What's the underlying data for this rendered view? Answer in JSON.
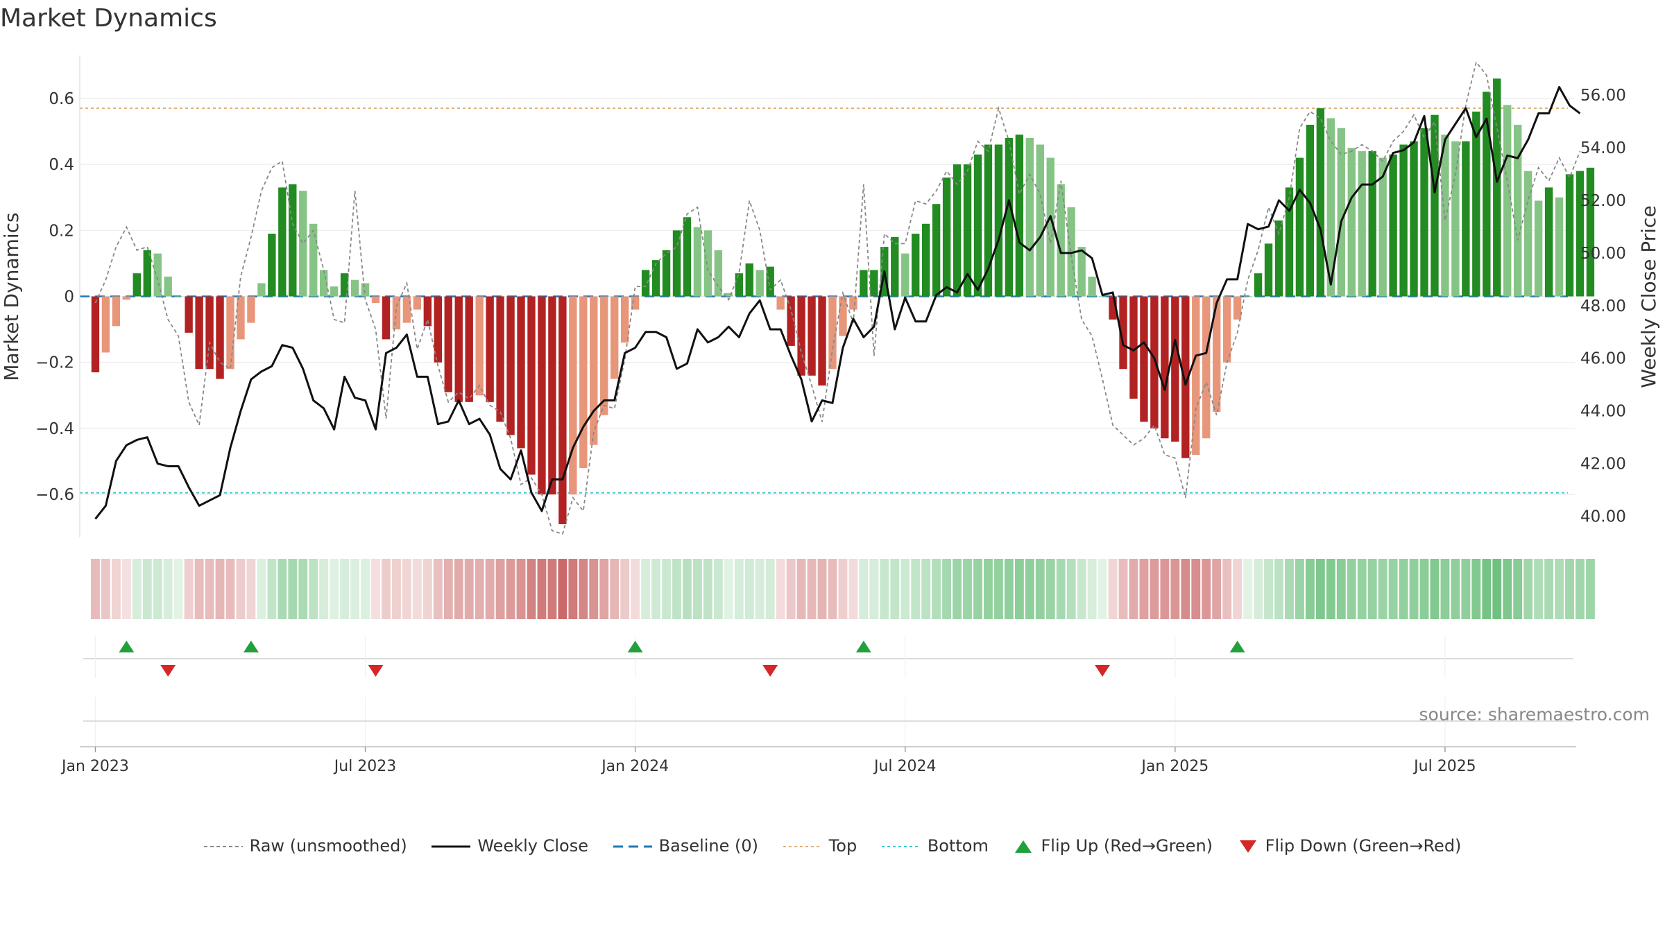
{
  "chart_data": {
    "type": "bar",
    "title": "Market Dynamics",
    "source": "source: sharemaestro.com",
    "y_left": {
      "label": "Market Dynamics",
      "range": [
        -0.73,
        0.73
      ],
      "ticks": [
        0.6,
        0.4,
        0.2,
        0,
        -0.2,
        -0.4,
        -0.6
      ],
      "tick_labels": [
        "0.6",
        "0.4",
        "0.2",
        "0",
        "−0.2",
        "−0.4",
        "−0.6"
      ]
    },
    "y_right": {
      "label": "Weekly Close Price",
      "range": [
        39.2,
        57.5
      ],
      "ticks": [
        40,
        42,
        44,
        46,
        48,
        50,
        52,
        54,
        56
      ],
      "tick_labels": [
        "40.00",
        "42.00",
        "44.00",
        "46.00",
        "48.00",
        "50.00",
        "52.00",
        "54.00",
        "56.00"
      ]
    },
    "x": {
      "range_weeks": [
        -1.5,
        142.5
      ],
      "ticks": [
        0,
        26,
        52,
        78,
        104,
        130
      ],
      "tick_labels": [
        "Jan 2023",
        "Jul 2023",
        "Jan 2024",
        "Jul 2024",
        "Jan 2025",
        "Jul 2025"
      ]
    },
    "top_level": 0.57,
    "bottom_level": -0.595,
    "legend": [
      "Raw (unsmoothed)",
      "Weekly Close",
      "Baseline (0)",
      "Top",
      "Bottom",
      "Flip Up (Red→Green)",
      "Flip Down (Green→Red)"
    ],
    "colors": {
      "strong_green": "#228B22",
      "light_green": "#86C486",
      "strong_red": "#B22222",
      "light_red": "#E8967A",
      "raw": "#888888",
      "close": "#111111",
      "baseline": "#1F77B4",
      "top": "#E0B070",
      "bottom": "#40C8D0",
      "flip_up": "#22A03A",
      "flip_down": "#D62728"
    },
    "series": [
      {
        "name": "Market Dynamics",
        "values": [
          -0.23,
          -0.17,
          -0.09,
          -0.01,
          0.07,
          0.14,
          0.13,
          0.06,
          0,
          -0.11,
          -0.22,
          -0.22,
          -0.25,
          -0.22,
          -0.13,
          -0.08,
          0.04,
          0.19,
          0.33,
          0.34,
          0.32,
          0.22,
          0.08,
          0.03,
          0.07,
          0.05,
          0.04,
          -0.02,
          -0.13,
          -0.1,
          -0.08,
          -0.04,
          -0.09,
          -0.2,
          -0.29,
          -0.32,
          -0.32,
          -0.3,
          -0.32,
          -0.38,
          -0.42,
          -0.46,
          -0.54,
          -0.6,
          -0.6,
          -0.69,
          -0.6,
          -0.52,
          -0.45,
          -0.36,
          -0.25,
          -0.14,
          -0.04,
          0.08,
          0.11,
          0.14,
          0.2,
          0.24,
          0.21,
          0.2,
          0.14,
          0.01,
          0.07,
          0.1,
          0.08,
          0.09,
          -0.04,
          -0.15,
          -0.24,
          -0.24,
          -0.27,
          -0.22,
          -0.12,
          -0.04,
          0.08,
          0.08,
          0.15,
          0.18,
          0.13,
          0.19,
          0.22,
          0.28,
          0.36,
          0.4,
          0.4,
          0.43,
          0.46,
          0.46,
          0.48,
          0.49,
          0.48,
          0.46,
          0.42,
          0.34,
          0.27,
          0.15,
          0.06,
          0,
          -0.07,
          -0.22,
          -0.31,
          -0.38,
          -0.4,
          -0.43,
          -0.44,
          -0.49,
          -0.48,
          -0.43,
          -0.35,
          -0.2,
          -0.07,
          0,
          0.07,
          0.16,
          0.23,
          0.33,
          0.42,
          0.52,
          0.57,
          0.54,
          0.51,
          0.45,
          0.44,
          0.44,
          0.42,
          0.43,
          0.46,
          0.47,
          0.51,
          0.55,
          0.49,
          0.47,
          0.47,
          0.56,
          0.62,
          0.66,
          0.58,
          0.52,
          0.38,
          0.29,
          0.33,
          0.3,
          0.37,
          0.38,
          0.39
        ]
      },
      {
        "name": "Raw (unsmoothed)",
        "values": [
          -0.02,
          0.05,
          0.15,
          0.21,
          0.14,
          0.15,
          0.05,
          -0.07,
          -0.12,
          -0.32,
          -0.39,
          -0.14,
          -0.2,
          -0.22,
          0.06,
          0.18,
          0.32,
          0.39,
          0.41,
          0.22,
          0.16,
          0.2,
          0.08,
          -0.07,
          -0.08,
          0.32,
          -0.01,
          -0.1,
          -0.37,
          -0.03,
          0.04,
          -0.16,
          -0.07,
          -0.21,
          -0.32,
          -0.29,
          -0.31,
          -0.27,
          -0.33,
          -0.35,
          -0.43,
          -0.57,
          -0.55,
          -0.6,
          -0.71,
          -0.72,
          -0.61,
          -0.65,
          -0.41,
          -0.33,
          -0.34,
          -0.19,
          0.03,
          0.03,
          0.1,
          0.13,
          0.15,
          0.25,
          0.27,
          0.08,
          0.03,
          -0.01,
          0.07,
          0.29,
          0.2,
          0.02,
          0.05,
          -0.04,
          -0.17,
          -0.27,
          -0.38,
          -0.16,
          0.01,
          -0.08,
          0.34,
          -0.18,
          0.19,
          0.16,
          0.16,
          0.29,
          0.28,
          0.32,
          0.38,
          0.34,
          0.38,
          0.47,
          0.44,
          0.57,
          0.47,
          0.31,
          0.37,
          0.31,
          0.16,
          0.35,
          0.12,
          -0.07,
          -0.12,
          -0.25,
          -0.39,
          -0.42,
          -0.45,
          -0.43,
          -0.39,
          -0.48,
          -0.49,
          -0.61,
          -0.34,
          -0.26,
          -0.36,
          -0.2,
          -0.11,
          0.05,
          0.14,
          0.27,
          0.19,
          0.3,
          0.51,
          0.56,
          0.54,
          0.47,
          0.43,
          0.44,
          0.46,
          0.44,
          0.41,
          0.47,
          0.5,
          0.55,
          0.48,
          0.53,
          0.23,
          0.37,
          0.58,
          0.71,
          0.67,
          0.51,
          0.35,
          0.17,
          0.29,
          0.39,
          0.35,
          0.42,
          0.36,
          0.44
        ]
      },
      {
        "name": "Weekly Close",
        "values": [
          39.9,
          40.4,
          42.1,
          42.7,
          42.9,
          43.0,
          42.0,
          41.9,
          41.9,
          41.1,
          40.4,
          40.6,
          40.8,
          42.6,
          44.0,
          45.2,
          45.5,
          45.7,
          46.5,
          46.4,
          45.6,
          44.4,
          44.1,
          43.3,
          45.3,
          44.5,
          44.4,
          43.3,
          46.2,
          46.4,
          46.9,
          45.3,
          45.3,
          43.5,
          43.6,
          44.4,
          43.5,
          43.7,
          43.1,
          41.8,
          41.4,
          42.5,
          40.9,
          40.2,
          41.4,
          41.4,
          42.6,
          43.4,
          44.0,
          44.4,
          44.4,
          46.2,
          46.4,
          47.0,
          47.0,
          46.8,
          45.6,
          45.8,
          47.1,
          46.6,
          46.8,
          47.2,
          46.8,
          47.7,
          48.2,
          47.1,
          47.1,
          46.1,
          45.2,
          43.6,
          44.4,
          44.3,
          46.4,
          47.5,
          46.8,
          47.2,
          49.3,
          47.1,
          48.3,
          47.4,
          47.4,
          48.4,
          48.7,
          48.5,
          49.2,
          48.6,
          49.4,
          50.5,
          52.0,
          50.4,
          50.1,
          50.6,
          51.4,
          50.0,
          50.0,
          50.1,
          49.8,
          48.4,
          48.5,
          46.5,
          46.3,
          46.6,
          46.0,
          44.8,
          46.7,
          45.0,
          46.1,
          46.2,
          48.1,
          49.0,
          49.0,
          51.1,
          50.9,
          51.0,
          52.0,
          51.6,
          52.4,
          51.9,
          50.9,
          48.8,
          51.2,
          52.1,
          52.6,
          52.6,
          52.9,
          53.8,
          53.9,
          54.2,
          55.2,
          52.3,
          54.3,
          54.9,
          55.5,
          54.4,
          55.1,
          52.7,
          53.7,
          53.6,
          54.3,
          55.3,
          55.3,
          56.3,
          55.6,
          55.3
        ]
      }
    ],
    "flips_up": [
      3,
      15,
      52,
      74,
      110
    ],
    "flips_down": [
      7,
      27,
      65,
      97
    ]
  }
}
